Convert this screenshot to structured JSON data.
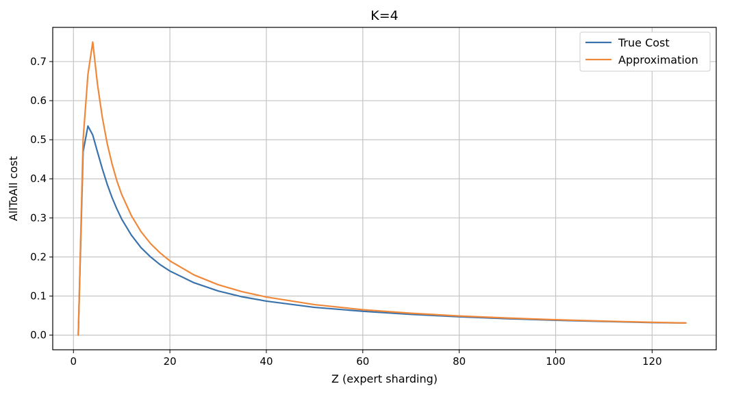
{
  "chart_data": {
    "type": "line",
    "title": "K=4",
    "xlabel": "Z (expert sharding)",
    "ylabel": "AllToAll cost",
    "xlim": [
      -4.3,
      133.3
    ],
    "ylim": [
      -0.0375,
      0.7875
    ],
    "xticks": [
      0,
      20,
      40,
      60,
      80,
      100,
      120
    ],
    "xtick_labels": [
      "0",
      "20",
      "40",
      "60",
      "80",
      "100",
      "120"
    ],
    "yticks": [
      0.0,
      0.1,
      0.2,
      0.3,
      0.4,
      0.5,
      0.6,
      0.7
    ],
    "ytick_labels": [
      "0.0",
      "0.1",
      "0.2",
      "0.3",
      "0.4",
      "0.5",
      "0.6",
      "0.7"
    ],
    "grid": true,
    "legend_position": "top-right",
    "series": [
      {
        "name": "True Cost",
        "color": "#3a72ab",
        "x": [
          1,
          2,
          3,
          4,
          5,
          6,
          7,
          8,
          9,
          10,
          12,
          14,
          16,
          18,
          20,
          25,
          30,
          35,
          40,
          50,
          60,
          70,
          80,
          90,
          100,
          110,
          120,
          127
        ],
        "y": [
          0.0,
          0.469,
          0.535,
          0.512,
          0.468,
          0.425,
          0.386,
          0.352,
          0.323,
          0.297,
          0.256,
          0.224,
          0.2,
          0.18,
          0.164,
          0.134,
          0.113,
          0.098,
          0.087,
          0.071,
          0.061,
          0.053,
          0.047,
          0.042,
          0.038,
          0.035,
          0.032,
          0.031
        ]
      },
      {
        "name": "Approximation",
        "color": "#f0883a",
        "x": [
          1,
          2,
          3,
          4,
          5,
          6,
          7,
          8,
          9,
          10,
          12,
          14,
          16,
          18,
          20,
          25,
          30,
          35,
          40,
          50,
          60,
          70,
          80,
          90,
          100,
          110,
          120,
          127
        ],
        "y": [
          0.0,
          0.5,
          0.667,
          0.75,
          0.64,
          0.556,
          0.49,
          0.438,
          0.395,
          0.36,
          0.306,
          0.265,
          0.234,
          0.21,
          0.19,
          0.154,
          0.129,
          0.111,
          0.0975,
          0.078,
          0.065,
          0.056,
          0.049,
          0.0437,
          0.0394,
          0.0358,
          0.0328,
          0.031
        ]
      }
    ]
  }
}
